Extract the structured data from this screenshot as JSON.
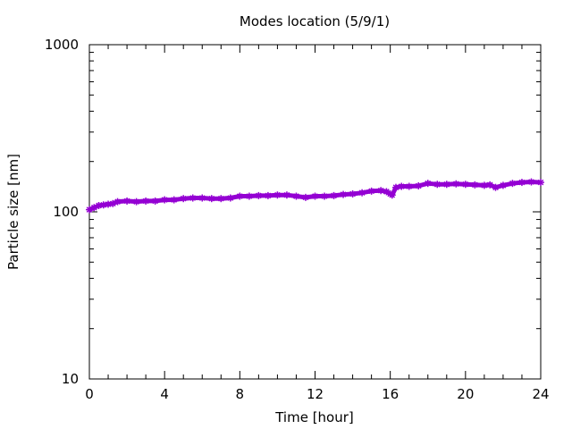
{
  "chart_data": {
    "type": "line",
    "title": "Modes location (5/9/1)",
    "xlabel": "Time [hour]",
    "ylabel": "Particle size [nm]",
    "xlim": [
      0,
      24
    ],
    "ylim": [
      10,
      1000
    ],
    "yscale": "log",
    "grid": false,
    "legend": "none",
    "x_ticks": [
      "0",
      "4",
      "8",
      "12",
      "16",
      "20",
      "24"
    ],
    "y_ticks": [
      "10",
      "100",
      "1000"
    ],
    "series": [
      {
        "color": "#9400d3",
        "marker": "star",
        "x": [
          0,
          0.25,
          0.5,
          0.75,
          1,
          1.25,
          1.5,
          2,
          2.5,
          3,
          3.5,
          4,
          4.5,
          5,
          5.5,
          6,
          6.5,
          7,
          7.5,
          8,
          8.5,
          9,
          9.5,
          10,
          10.5,
          11,
          11.5,
          12,
          12.5,
          13,
          13.5,
          14,
          14.5,
          15,
          15.5,
          15.8,
          16,
          16.1,
          16.3,
          16.6,
          17,
          17.5,
          18,
          18.5,
          19,
          19.5,
          20,
          20.5,
          21,
          21.3,
          21.6,
          22,
          22.5,
          23,
          23.5,
          24
        ],
        "y": [
          103,
          106,
          109,
          110,
          111,
          112,
          115,
          116,
          115,
          116,
          116,
          118,
          118,
          120,
          121,
          121,
          120,
          120,
          121,
          124,
          124,
          125,
          125,
          126,
          126,
          124,
          122,
          124,
          124,
          125,
          127,
          128,
          130,
          133,
          134,
          132,
          128,
          126,
          140,
          142,
          142,
          143,
          148,
          146,
          146,
          147,
          146,
          145,
          144,
          145,
          140,
          144,
          148,
          150,
          151,
          150
        ]
      }
    ]
  }
}
